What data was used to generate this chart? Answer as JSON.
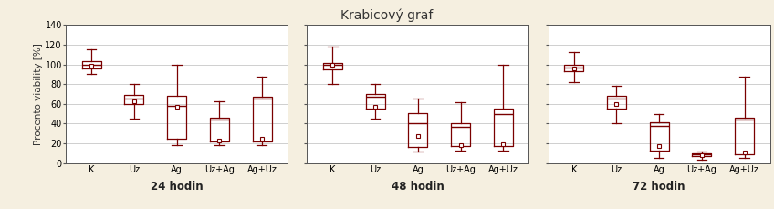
{
  "title": "Krabicový graf",
  "title_fontsize": 10,
  "ylabel": "Procento viability [%]",
  "ylabel_fontsize": 7.5,
  "background_color": "#f5efe0",
  "plot_background": "#ffffff",
  "box_color": "#7a0000",
  "whisker_color": "#7a0000",
  "median_color": "#7a0000",
  "mean_color": "#7a0000",
  "grid_color": "#c8c8c8",
  "ylim": [
    0,
    140
  ],
  "yticks": [
    0,
    20,
    40,
    60,
    80,
    100,
    120,
    140
  ],
  "tick_fontsize": 7,
  "categories": [
    "K",
    "Uz",
    "Ag",
    "Uz+Ag",
    "Ag+Uz"
  ],
  "xlabel_fontsize": 8.5,
  "subplots": [
    {
      "xlabel": "24 hodin",
      "data": [
        {
          "q1": 96,
          "median": 100,
          "q3": 103,
          "mean": 99,
          "whislo": 90,
          "whishi": 115
        },
        {
          "q1": 60,
          "median": 65,
          "q3": 69,
          "mean": 63,
          "whislo": 45,
          "whishi": 80
        },
        {
          "q1": 25,
          "median": 58,
          "q3": 68,
          "mean": 57,
          "whislo": 18,
          "whishi": 100
        },
        {
          "q1": 22,
          "median": 44,
          "q3": 46,
          "mean": 23,
          "whislo": 18,
          "whishi": 63
        },
        {
          "q1": 22,
          "median": 65,
          "q3": 67,
          "mean": 25,
          "whislo": 18,
          "whishi": 88
        }
      ]
    },
    {
      "xlabel": "48 hodin",
      "data": [
        {
          "q1": 95,
          "median": 100,
          "q3": 102,
          "mean": 100,
          "whislo": 80,
          "whishi": 118
        },
        {
          "q1": 55,
          "median": 67,
          "q3": 70,
          "mean": 57,
          "whislo": 45,
          "whishi": 80
        },
        {
          "q1": 16,
          "median": 40,
          "q3": 51,
          "mean": 27,
          "whislo": 12,
          "whishi": 65
        },
        {
          "q1": 17,
          "median": 37,
          "q3": 40,
          "mean": 18,
          "whislo": 13,
          "whishi": 62
        },
        {
          "q1": 17,
          "median": 50,
          "q3": 55,
          "mean": 19,
          "whislo": 13,
          "whishi": 100
        }
      ]
    },
    {
      "xlabel": "72 hodin",
      "data": [
        {
          "q1": 93,
          "median": 97,
          "q3": 100,
          "mean": 96,
          "whislo": 82,
          "whishi": 113
        },
        {
          "q1": 55,
          "median": 65,
          "q3": 68,
          "mean": 60,
          "whislo": 40,
          "whishi": 78
        },
        {
          "q1": 13,
          "median": 38,
          "q3": 41,
          "mean": 17,
          "whislo": 5,
          "whishi": 50
        },
        {
          "q1": 7,
          "median": 9,
          "q3": 10,
          "mean": 8,
          "whislo": 3,
          "whishi": 12
        },
        {
          "q1": 9,
          "median": 44,
          "q3": 46,
          "mean": 11,
          "whislo": 5,
          "whishi": 88
        }
      ]
    }
  ]
}
